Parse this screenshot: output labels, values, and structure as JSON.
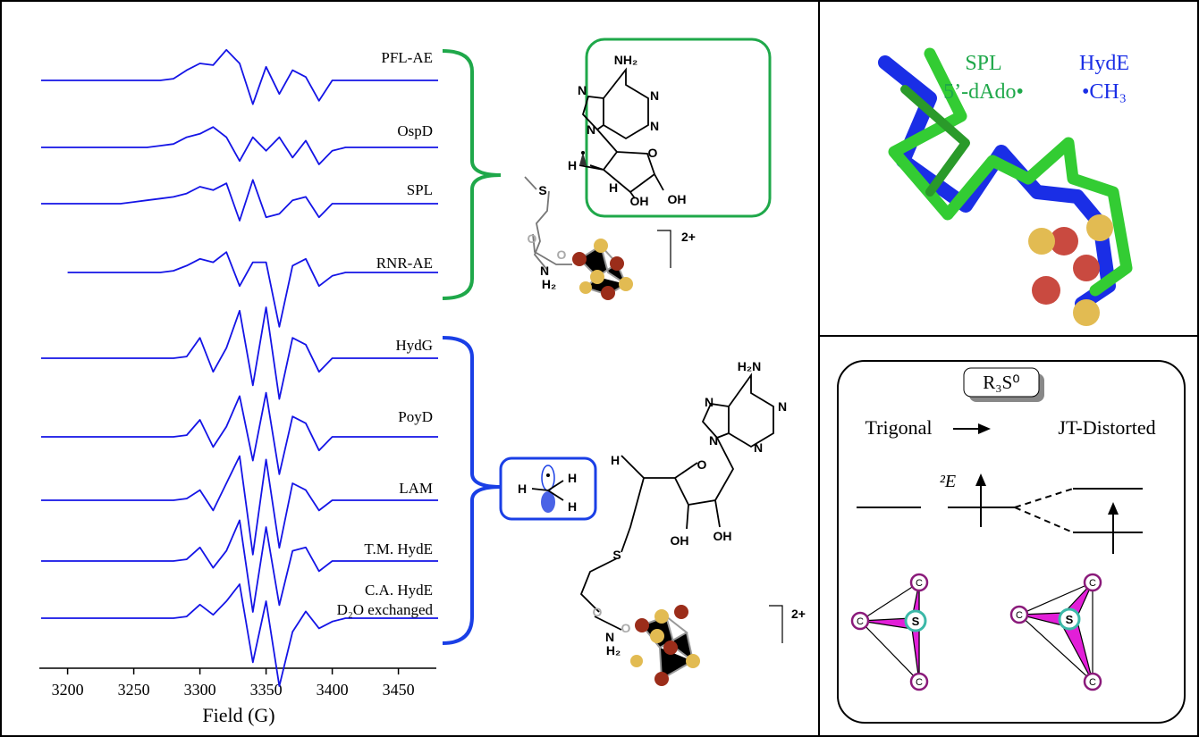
{
  "chart_data": {
    "type": "line",
    "xlabel": "Field (G)",
    "x": [
      3180,
      3190,
      3200,
      3210,
      3220,
      3230,
      3240,
      3250,
      3260,
      3270,
      3280,
      3290,
      3300,
      3310,
      3320,
      3330,
      3340,
      3350,
      3360,
      3370,
      3380,
      3390,
      3400,
      3410,
      3420,
      3430,
      3440,
      3450,
      3460,
      3470,
      3480
    ],
    "xlim": [
      3180,
      3480
    ],
    "xticks": [
      3200,
      3250,
      3300,
      3350,
      3400,
      3450
    ],
    "series": [
      {
        "name": "PFL-AE",
        "color": "#1414e6",
        "values": [
          0,
          0,
          0,
          0,
          0,
          0,
          0,
          0,
          0,
          0,
          0.05,
          0.3,
          0.5,
          0.45,
          0.9,
          0.5,
          -0.7,
          0.4,
          -0.4,
          0.3,
          0.1,
          -0.6,
          0,
          0,
          0,
          0,
          0,
          0,
          0,
          0,
          0
        ]
      },
      {
        "name": "OspD",
        "color": "#1414e6",
        "values": [
          0,
          0,
          0,
          0,
          0,
          0,
          0,
          0,
          0,
          0.05,
          0.1,
          0.3,
          0.4,
          0.6,
          0.3,
          -0.4,
          0.3,
          -0.1,
          0.3,
          -0.3,
          0.2,
          -0.5,
          -0.1,
          0,
          0,
          0,
          0,
          0,
          0,
          0,
          0
        ]
      },
      {
        "name": "SPL",
        "color": "#1414e6",
        "values": [
          0,
          0,
          0,
          0,
          0,
          0,
          0,
          0.05,
          0.1,
          0.15,
          0.2,
          0.3,
          0.5,
          0.4,
          0.6,
          -0.5,
          0.7,
          -0.4,
          -0.3,
          0.1,
          0.2,
          -0.4,
          0,
          0,
          0,
          0,
          0,
          0,
          0,
          0,
          0
        ]
      },
      {
        "name": "RNR-AE",
        "color": "#1414e6",
        "values": [
          null,
          null,
          0,
          0,
          0,
          0,
          0,
          0,
          0,
          0,
          0.05,
          0.2,
          0.4,
          0.3,
          0.6,
          -0.4,
          0.3,
          0.3,
          -1.6,
          0.2,
          0.4,
          -0.4,
          -0.1,
          0,
          0,
          0,
          0,
          0,
          0,
          0,
          0
        ]
      },
      {
        "name": "HydG",
        "color": "#1414e6",
        "values": [
          0,
          0,
          0,
          0,
          0,
          0,
          0,
          0,
          0,
          0,
          0,
          0.05,
          0.6,
          -0.4,
          0.3,
          1.4,
          -0.8,
          1.5,
          -1.2,
          0.6,
          0.4,
          -0.4,
          0,
          0,
          0,
          0,
          0,
          0,
          0,
          0,
          0
        ]
      },
      {
        "name": "PoyD",
        "color": "#1414e6",
        "values": [
          0,
          0,
          0,
          0,
          0,
          0,
          0,
          0,
          0,
          0,
          0,
          0.05,
          0.5,
          -0.3,
          0.3,
          1.2,
          -0.7,
          1.3,
          -1.1,
          0.6,
          0.4,
          -0.4,
          0,
          0,
          0,
          0,
          0,
          0,
          0,
          0,
          0
        ]
      },
      {
        "name": "LAM",
        "color": "#1414e6",
        "values": [
          0,
          0,
          0,
          0,
          0,
          0,
          0,
          0,
          0,
          0,
          0,
          0.05,
          0.3,
          -0.3,
          0.5,
          1.3,
          -1.6,
          1.2,
          -1.4,
          0.5,
          0.3,
          -0.3,
          0,
          0,
          0,
          0,
          0,
          0,
          0,
          0,
          0
        ]
      },
      {
        "name": "T.M. HydE",
        "color": "#1414e6",
        "values": [
          0,
          0,
          0,
          0,
          0,
          0,
          0,
          0,
          0,
          0,
          0,
          0.05,
          0.4,
          -0.2,
          0.3,
          1.2,
          -1.5,
          1.0,
          -1.3,
          0.3,
          0.4,
          -0.3,
          0,
          0,
          0,
          0,
          0,
          0,
          0,
          0,
          0
        ]
      },
      {
        "name": "C.A. HydE",
        "subtitle": "D₂O exchanged",
        "color": "#1414e6",
        "values": [
          0,
          0,
          0,
          0,
          0,
          0,
          0,
          0,
          0,
          0,
          0,
          0.05,
          0.4,
          0.1,
          0.5,
          1.0,
          -1.3,
          0.5,
          -2.0,
          -0.4,
          0.2,
          -0.3,
          -0.1,
          0,
          0,
          0,
          0,
          0,
          0,
          0,
          0
        ]
      }
    ]
  },
  "green_structure": {
    "atoms": [
      "NH₂",
      "N",
      "N",
      "N",
      "N",
      "O",
      "H",
      "H",
      "OH",
      "OH"
    ],
    "cofactor": [
      "S",
      "O",
      "O",
      "N",
      "H₂",
      "2+"
    ]
  },
  "blue_structure": {
    "methyl": [
      "H",
      "H",
      "H"
    ],
    "atoms": [
      "H₂N",
      "N",
      "N",
      "N",
      "N",
      "H",
      "O",
      "OH",
      "OH"
    ],
    "cofactor": [
      "S",
      "O",
      "O",
      "N",
      "H₂",
      "2+"
    ]
  },
  "overlay": {
    "labels": [
      "SPL",
      "HydE",
      "5’-dAdo•",
      "•CH₃"
    ]
  },
  "orbital_diagram": {
    "species": "R₃S⁰",
    "left": "Trigonal",
    "right": "JT-Distorted",
    "state": "²E",
    "center_atom": "S",
    "vertex_atom": "C"
  }
}
